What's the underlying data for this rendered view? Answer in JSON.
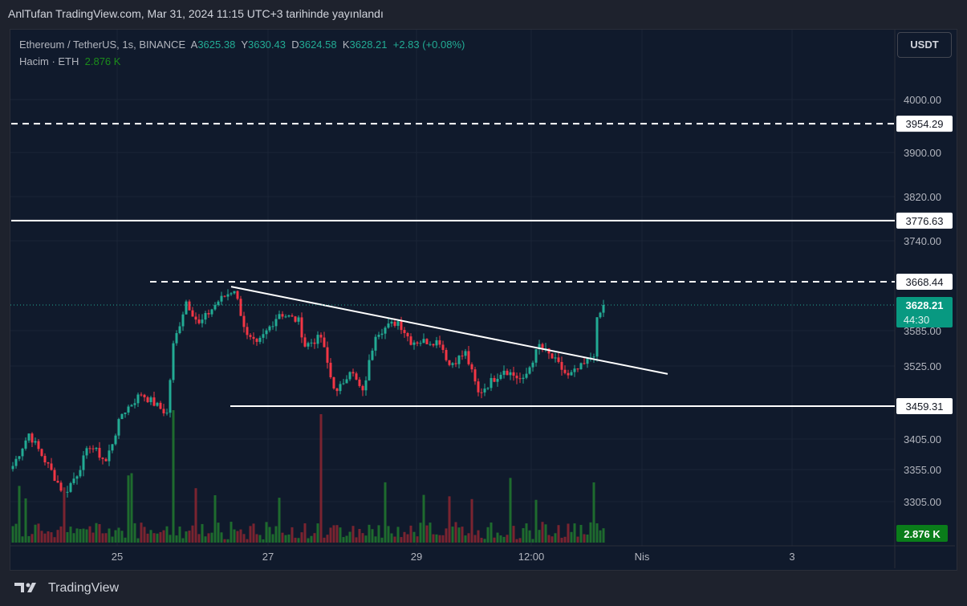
{
  "header": {
    "published": "AnlTufan TradingView.com, Mar 31, 2024 11:15 UTC+3 tarihinde yayınlandı"
  },
  "legend": {
    "symbol": "Ethereum / TetherUS, 1s, BINANCE",
    "o_label": "A",
    "o": "3625.38",
    "h_label": "Y",
    "h": "3630.43",
    "l_label": "D",
    "l": "3624.58",
    "c_label": "K",
    "c": "3628.21",
    "change": "+2.83 (+0.08%)",
    "volume_label": "Hacim · ETH",
    "volume": "2.876 K"
  },
  "currency_button": "USDT",
  "footer": {
    "brand": "TradingView"
  },
  "colors": {
    "up": "#22ab94",
    "down": "#f23645",
    "vol_up": "#1e6b2e",
    "vol_down": "#7a2430",
    "bg": "#101a2c"
  },
  "chart_data": {
    "type": "candlestick",
    "price_ticks": [
      "4000.00",
      "3900.00",
      "3820.00",
      "3740.00",
      "3585.00",
      "3525.00",
      "3405.00",
      "3355.00",
      "3305.00"
    ],
    "x_ticks": [
      "25",
      "27",
      "29",
      "12:00",
      "Nis",
      "3"
    ],
    "levels": [
      {
        "price": 3954.29,
        "label": "3954.29",
        "style": "dashed"
      },
      {
        "price": 3776.63,
        "label": "3776.63",
        "style": "solid"
      },
      {
        "price": 3668.44,
        "label": "3668.44",
        "style": "dashed"
      },
      {
        "price": 3459.31,
        "label": "3459.31",
        "style": "solid"
      }
    ],
    "trendline": {
      "from": [
        68,
        3660
      ],
      "to": [
        204,
        3512
      ]
    },
    "last_price": {
      "label": "3628.21",
      "countdown": "44:30",
      "price": 3628.21
    },
    "volume_label": "2.876 K",
    "close_keypoints": [
      [
        0,
        3361
      ],
      [
        5,
        3414
      ],
      [
        11,
        3361
      ],
      [
        16,
        3317
      ],
      [
        20,
        3349
      ],
      [
        24,
        3395
      ],
      [
        29,
        3368
      ],
      [
        34,
        3447
      ],
      [
        40,
        3480
      ],
      [
        48,
        3447
      ],
      [
        50,
        3560
      ],
      [
        54,
        3635
      ],
      [
        58,
        3595
      ],
      [
        64,
        3635
      ],
      [
        69,
        3656
      ],
      [
        73,
        3574
      ],
      [
        76,
        3560
      ],
      [
        83,
        3615
      ],
      [
        89,
        3601
      ],
      [
        91,
        3560
      ],
      [
        96,
        3574
      ],
      [
        99,
        3507
      ],
      [
        101,
        3480
      ],
      [
        105,
        3520
      ],
      [
        109,
        3480
      ],
      [
        113,
        3581
      ],
      [
        120,
        3601
      ],
      [
        124,
        3567
      ],
      [
        133,
        3567
      ],
      [
        136,
        3527
      ],
      [
        141,
        3547
      ],
      [
        145,
        3480
      ],
      [
        149,
        3500
      ],
      [
        153,
        3520
      ],
      [
        159,
        3500
      ],
      [
        164,
        3560
      ],
      [
        169,
        3533
      ],
      [
        173,
        3507
      ],
      [
        178,
        3527
      ],
      [
        181,
        3547
      ],
      [
        182,
        3601
      ],
      [
        184,
        3628
      ]
    ]
  }
}
